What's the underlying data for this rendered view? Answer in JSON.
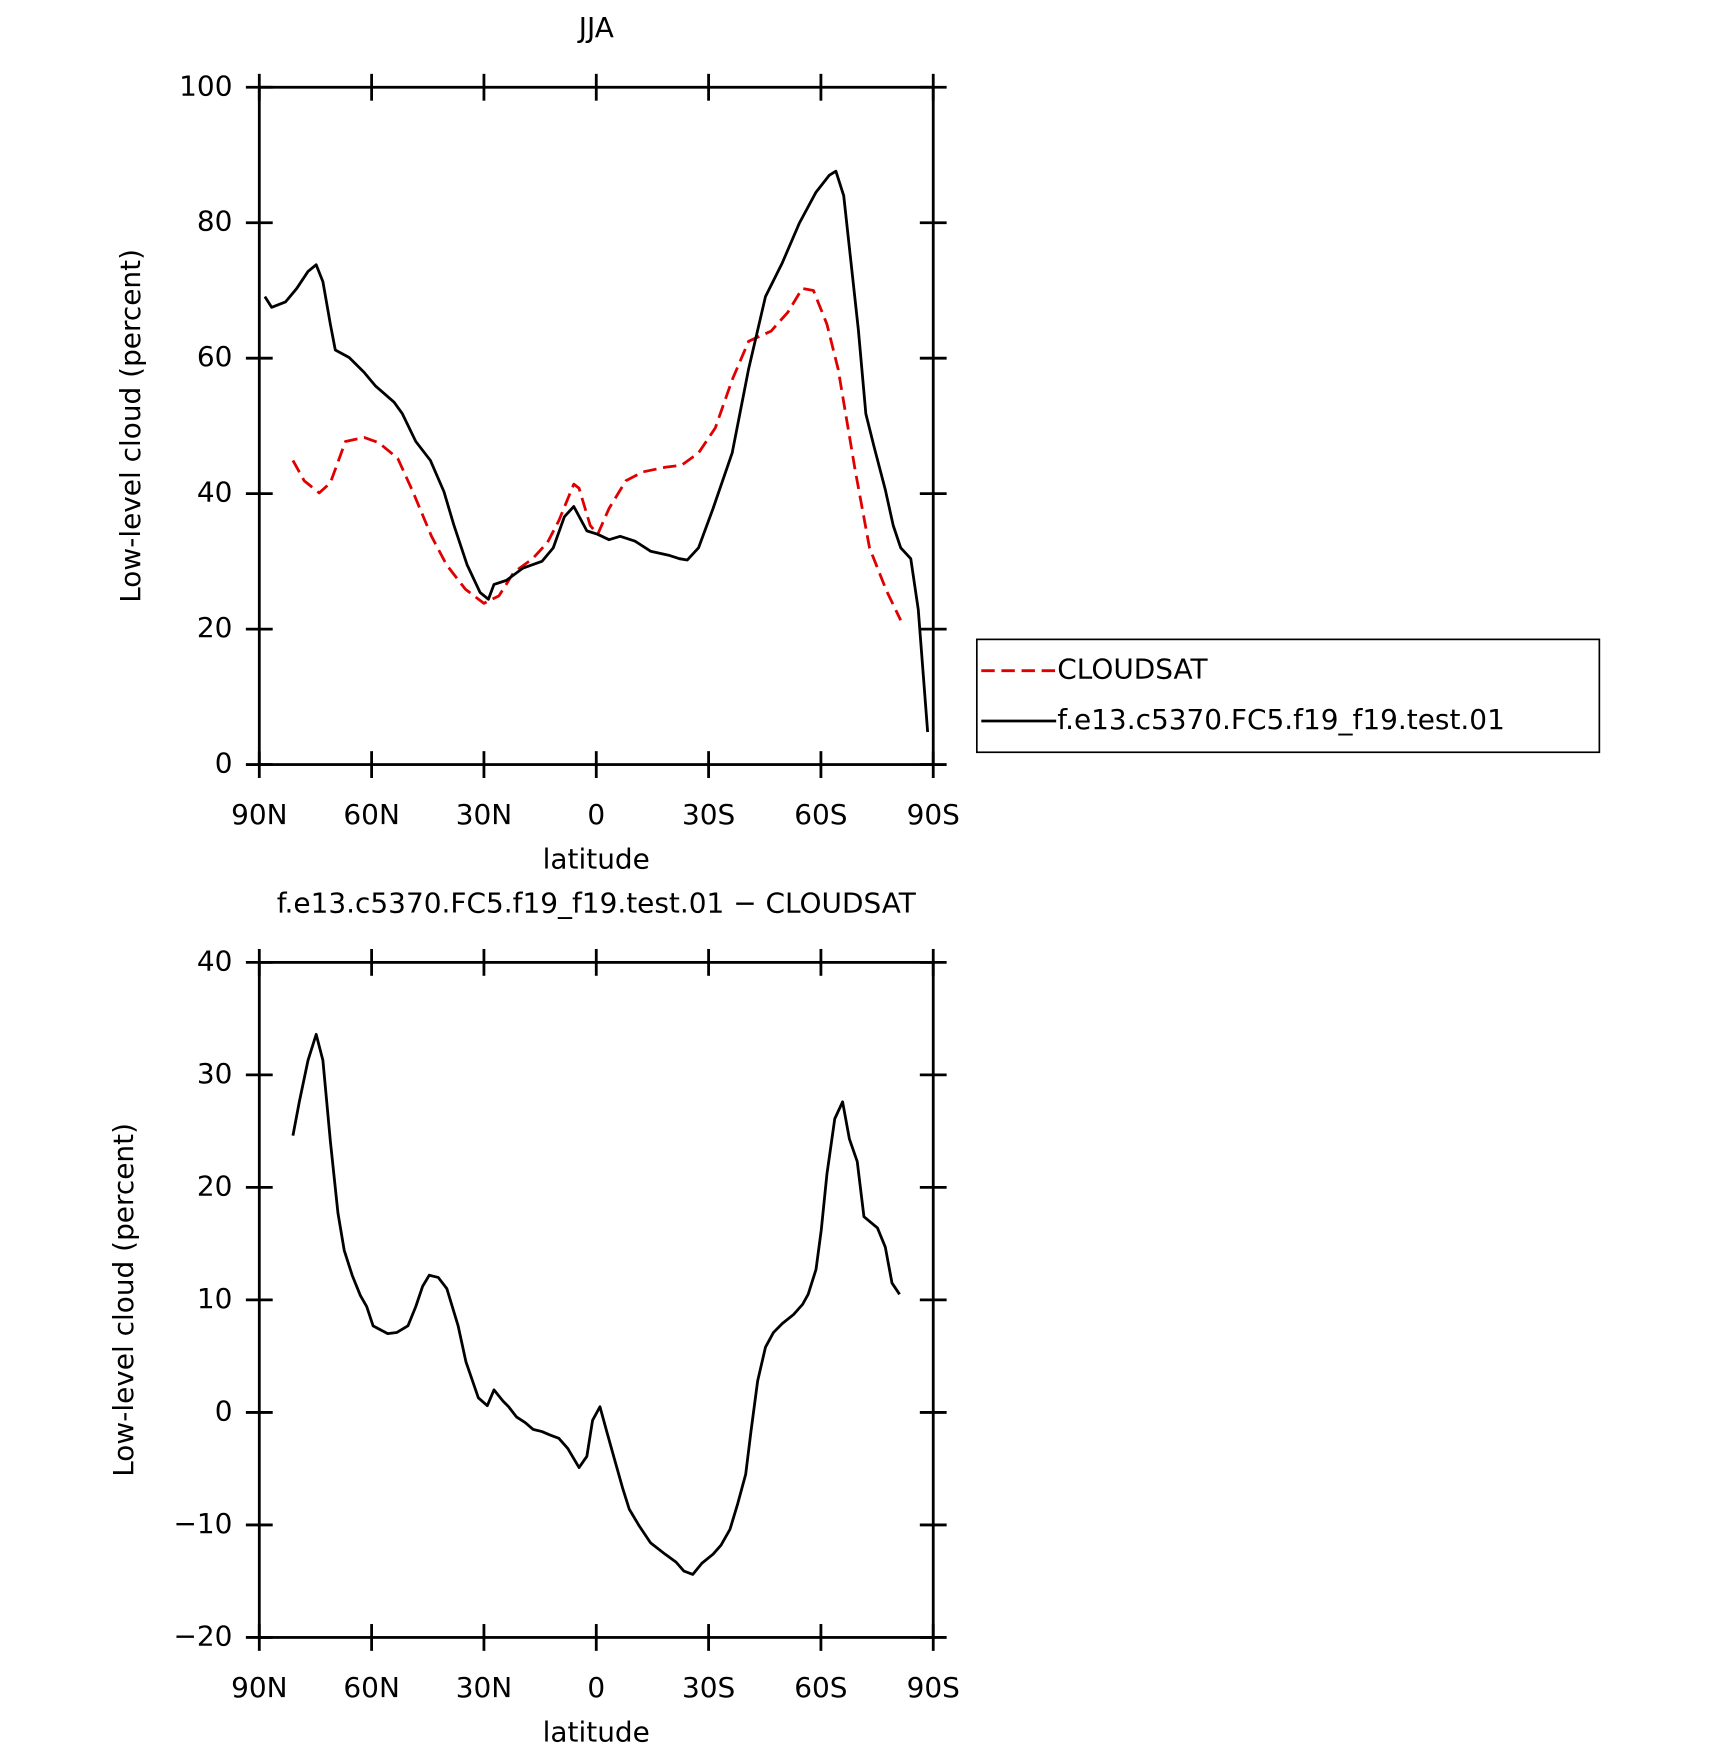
{
  "chart_data": [
    {
      "type": "line",
      "title": "JJA",
      "xlabel": "latitude",
      "ylabel": "Low-level cloud (percent)",
      "xlim": [
        90,
        -90
      ],
      "ylim": [
        0,
        100
      ],
      "xticks": [
        {
          "value": 90,
          "label": "90N"
        },
        {
          "value": 60,
          "label": "60N"
        },
        {
          "value": 30,
          "label": "30N"
        },
        0,
        {
          "value": -30,
          "label": "30S"
        },
        {
          "value": -60,
          "label": "60S"
        },
        {
          "value": -90,
          "label": "90S"
        }
      ],
      "yticks": [
        0,
        20,
        40,
        60,
        80,
        100
      ],
      "legend": "right",
      "series": [
        {
          "name": "CLOUDSAT",
          "color": "#e00000",
          "dashed": true,
          "x": [
            81,
            78,
            74,
            71,
            67,
            62,
            58,
            53,
            49,
            44,
            40,
            35,
            30,
            26,
            22,
            17,
            13,
            10,
            6,
            4.6,
            1.6,
            -0.4,
            -3.4,
            -7.9,
            -12.4,
            -18.4,
            -22.8,
            -27.3,
            -31.8,
            -36.3,
            -40.7,
            -46.7,
            -51.2,
            -55,
            -58,
            -61.6,
            -64.6,
            -69.1,
            -73,
            -77.5,
            -81.3
          ],
          "values": [
            44.9,
            41.9,
            40.1,
            41.6,
            47.7,
            48.3,
            47.5,
            45.2,
            40.3,
            33.7,
            29.5,
            25.9,
            23.8,
            24.9,
            28.4,
            30.4,
            32.8,
            36,
            41.4,
            40.8,
            35.3,
            34,
            37.8,
            41.9,
            43.2,
            43.9,
            44.2,
            46,
            49.7,
            56.8,
            62.5,
            64,
            66.8,
            70.3,
            70,
            65,
            58.4,
            43.6,
            32,
            25.7,
            21.3
          ]
        },
        {
          "name": "f.e13.c5370.FC5.f19_f19.test.01",
          "color": "#000000",
          "dashed": false,
          "x": [
            88.5,
            86.7,
            83,
            80,
            77,
            74.8,
            73,
            71,
            69.7,
            66,
            62,
            59,
            54,
            51.8,
            48.2,
            44.3,
            40.7,
            38,
            34.5,
            31,
            28.8,
            27.3,
            24,
            19.6,
            14.5,
            11.5,
            8.5,
            6,
            2.5,
            -0.4,
            -3.4,
            -6.4,
            -10.3,
            -14.5,
            -19.3,
            -22.2,
            -24.3,
            -27.3,
            -31.2,
            -36.3,
            -40.7,
            -45.2,
            -49.7,
            -54.2,
            -58.7,
            -62.2,
            -64,
            -66.1,
            -70,
            -72,
            -74.2,
            -77.2,
            -79.3,
            -81.3,
            -84,
            -86,
            -88.5
          ],
          "values": [
            69.1,
            67.5,
            68.3,
            70.3,
            72.8,
            73.8,
            71.3,
            65,
            61.2,
            60.1,
            57.9,
            55.9,
            53.5,
            51.8,
            47.7,
            44.9,
            40.3,
            35.3,
            29.5,
            25.4,
            24.4,
            26.6,
            27.2,
            29,
            30,
            32,
            36.6,
            38.1,
            34.5,
            34,
            33.2,
            33.7,
            33,
            31.5,
            30.9,
            30.4,
            30.2,
            32,
            37.8,
            46,
            58.4,
            69.1,
            74.1,
            79.9,
            84.5,
            87,
            87.6,
            84,
            64.2,
            51.8,
            46.9,
            40.6,
            35.3,
            32,
            30.4,
            22.9,
            4.8
          ]
        }
      ]
    },
    {
      "type": "line",
      "title": "f.e13.c5370.FC5.f19_f19.test.01 − CLOUDSAT",
      "xlabel": "latitude",
      "ylabel": "Low-level cloud (percent)",
      "xlim": [
        90,
        -90
      ],
      "ylim": [
        -20,
        40
      ],
      "xticks": [
        {
          "value": 90,
          "label": "90N"
        },
        {
          "value": 60,
          "label": "60N"
        },
        {
          "value": 30,
          "label": "30N"
        },
        0,
        {
          "value": -30,
          "label": "30S"
        },
        {
          "value": -60,
          "label": "60S"
        },
        {
          "value": -90,
          "label": "90S"
        }
      ],
      "yticks": [
        {
          "value": -20,
          "label": "−20"
        },
        {
          "value": -10,
          "label": "−10"
        },
        0,
        10,
        20,
        30,
        40
      ],
      "series": [
        {
          "color": "#000000",
          "dashed": false,
          "x": [
            81,
            79.3,
            77,
            74.8,
            73,
            71,
            69,
            67.3,
            65.2,
            63,
            61.3,
            59.6,
            55.7,
            53.3,
            50.3,
            48.2,
            46.4,
            44.6,
            42.2,
            39.9,
            36.9,
            34.8,
            31.5,
            29.1,
            27.3,
            24.9,
            23.4,
            21.3,
            19,
            16.9,
            14.5,
            12.4,
            10,
            7.6,
            4.6,
            2.5,
            1,
            -1,
            -2.8,
            -4.9,
            -7,
            -8.8,
            -11.5,
            -14.5,
            -18.4,
            -21.3,
            -23.4,
            -25.8,
            -28.2,
            -31.2,
            -33.3,
            -35.7,
            -37.8,
            -39.9,
            -41.3,
            -43.1,
            -45.2,
            -47.3,
            -49.7,
            -52.7,
            -55.1,
            -56.6,
            -58.7,
            -60.1,
            -61.6,
            -63.7,
            -65.8,
            -67.6,
            -69.7,
            -71.5,
            -75.1,
            -77.2,
            -79,
            -81
          ],
          "values": [
            24.6,
            27.6,
            31.3,
            33.6,
            31.3,
            24.1,
            17.7,
            14.4,
            12.2,
            10.4,
            9.4,
            7.7,
            7,
            7.1,
            7.7,
            9.4,
            11.2,
            12.2,
            12,
            11,
            7.7,
            4.5,
            1.3,
            0.6,
            2,
            1,
            0.5,
            -0.4,
            -0.9,
            -1.5,
            -1.7,
            -2,
            -2.3,
            -3.2,
            -4.9,
            -3.9,
            -0.7,
            0.5,
            -1.7,
            -4.2,
            -6.7,
            -8.6,
            -10.1,
            -11.6,
            -12.6,
            -13.3,
            -14.1,
            -14.4,
            -13.4,
            -12.6,
            -11.8,
            -10.4,
            -8.1,
            -5.5,
            -1.7,
            2.8,
            5.8,
            7.1,
            7.9,
            8.7,
            9.6,
            10.5,
            12.7,
            16.2,
            21.2,
            26.1,
            27.6,
            24.3,
            22.3,
            17.4,
            16.4,
            14.7,
            11.5,
            10.5
          ]
        }
      ]
    }
  ]
}
